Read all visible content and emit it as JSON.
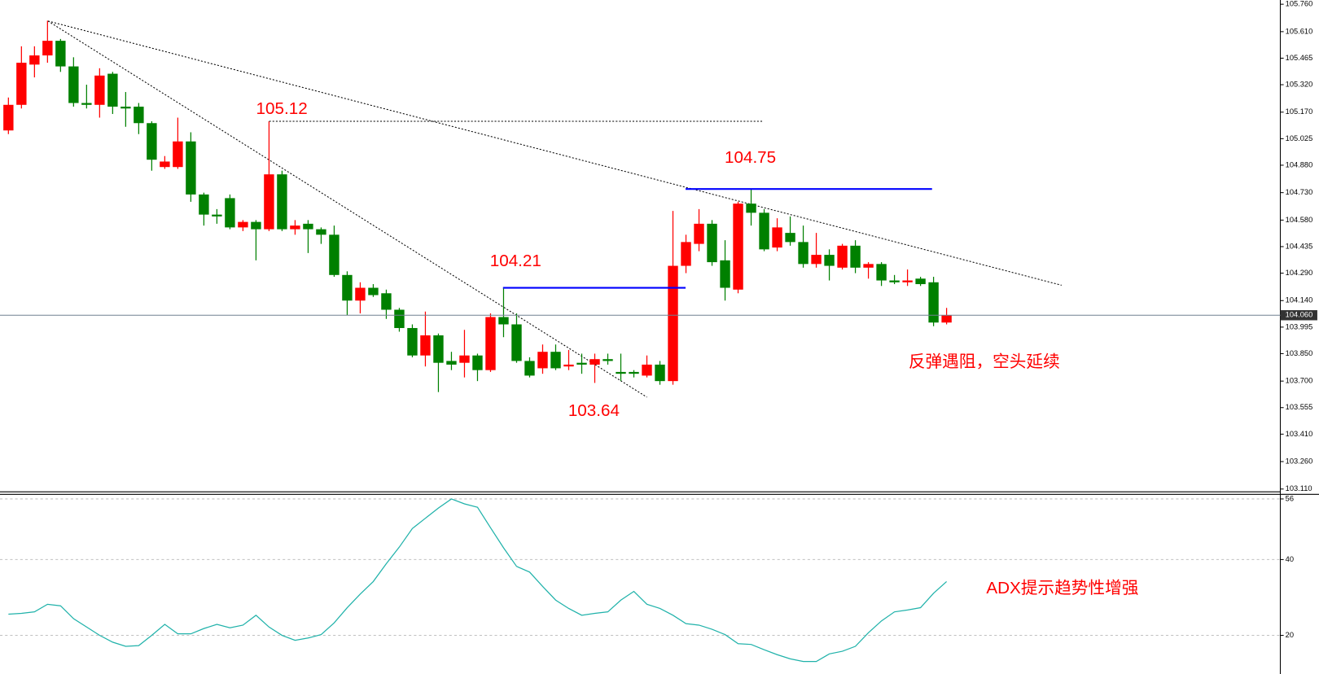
{
  "chart_data": [
    {
      "type": "candlestick",
      "open": [
        105.07,
        105.21,
        105.43,
        105.48,
        105.56,
        105.42,
        105.22,
        105.21,
        105.38,
        105.2,
        105.2,
        105.11,
        104.87,
        104.87,
        105.01,
        104.72,
        104.61,
        104.7,
        104.54,
        104.57,
        104.53,
        104.83,
        104.53,
        104.56,
        104.53,
        104.5,
        104.28,
        104.14,
        104.21,
        104.18,
        104.09,
        103.99,
        103.84,
        103.95,
        103.81,
        103.8,
        103.84,
        103.76,
        104.05,
        104.01,
        103.81,
        103.77,
        103.86,
        103.78,
        103.8,
        103.79,
        103.82,
        103.75,
        103.75,
        103.73,
        103.79,
        103.7,
        104.33,
        104.45,
        104.56,
        104.36,
        104.2,
        104.67,
        104.62,
        104.43,
        104.51,
        104.46,
        104.34,
        104.39,
        104.32,
        104.44,
        104.32,
        104.34,
        104.25,
        104.24,
        104.26,
        104.24,
        104.02
      ],
      "high": [
        105.25,
        105.53,
        105.53,
        105.67,
        105.57,
        105.47,
        105.32,
        105.41,
        105.39,
        105.28,
        105.22,
        105.12,
        104.93,
        105.14,
        105.06,
        104.73,
        104.64,
        104.72,
        104.58,
        104.58,
        105.12,
        104.85,
        104.58,
        104.58,
        104.54,
        104.55,
        104.3,
        104.24,
        104.23,
        104.2,
        104.1,
        104.01,
        104.08,
        103.96,
        103.86,
        103.98,
        103.85,
        104.07,
        104.21,
        104.07,
        103.83,
        103.9,
        103.9,
        103.87,
        103.85,
        103.85,
        103.85,
        103.85,
        103.76,
        103.84,
        103.81,
        104.63,
        104.5,
        104.64,
        104.58,
        104.47,
        104.68,
        104.75,
        104.64,
        104.59,
        104.6,
        104.55,
        104.51,
        104.42,
        104.45,
        104.47,
        104.35,
        104.35,
        104.28,
        104.31,
        104.27,
        104.27,
        104.1
      ],
      "low": [
        105.05,
        105.19,
        105.36,
        105.44,
        105.39,
        105.2,
        105.19,
        105.14,
        105.16,
        105.09,
        105.05,
        104.85,
        104.86,
        104.86,
        104.68,
        104.55,
        104.56,
        104.53,
        104.52,
        104.36,
        104.52,
        104.52,
        104.5,
        104.4,
        104.45,
        104.27,
        104.06,
        104.07,
        104.16,
        104.04,
        103.97,
        103.83,
        103.78,
        103.64,
        103.76,
        103.72,
        103.7,
        103.75,
        103.94,
        103.8,
        103.72,
        103.74,
        103.76,
        103.76,
        103.74,
        103.69,
        103.79,
        103.7,
        103.72,
        103.72,
        103.68,
        103.68,
        104.29,
        104.41,
        104.33,
        104.14,
        104.18,
        104.55,
        104.41,
        104.41,
        104.44,
        104.32,
        104.32,
        104.25,
        104.31,
        104.29,
        104.26,
        104.22,
        104.23,
        104.22,
        104.22,
        104.0,
        104.01
      ],
      "close": [
        105.21,
        105.44,
        105.48,
        105.56,
        105.42,
        105.22,
        105.21,
        105.37,
        105.2,
        105.19,
        105.11,
        104.91,
        104.9,
        105.01,
        104.72,
        104.61,
        104.6,
        104.54,
        104.57,
        104.53,
        104.83,
        104.53,
        104.55,
        104.53,
        104.5,
        104.28,
        104.14,
        104.21,
        104.17,
        104.09,
        103.99,
        103.84,
        103.95,
        103.8,
        103.79,
        103.84,
        103.76,
        104.05,
        104.01,
        103.81,
        103.73,
        103.86,
        103.77,
        103.79,
        103.79,
        103.82,
        103.81,
        103.74,
        103.74,
        103.79,
        103.7,
        104.33,
        104.46,
        104.56,
        104.35,
        104.21,
        104.67,
        104.62,
        104.42,
        104.54,
        104.46,
        104.34,
        104.39,
        104.33,
        104.44,
        104.32,
        104.34,
        104.25,
        104.24,
        104.25,
        104.23,
        104.02,
        104.06
      ],
      "up_color": "#ff0000",
      "down_color": "#008000",
      "ylim": [
        103.097,
        105.783
      ],
      "yticks": [
        {
          "value": 105.76,
          "label": "105.760"
        },
        {
          "value": 105.61,
          "label": "105.610"
        },
        {
          "value": 105.465,
          "label": "105.465"
        },
        {
          "value": 105.32,
          "label": "105.320"
        },
        {
          "value": 105.17,
          "label": "105.170"
        },
        {
          "value": 105.025,
          "label": "105.025"
        },
        {
          "value": 104.88,
          "label": "104.880"
        },
        {
          "value": 104.73,
          "label": "104.730"
        },
        {
          "value": 104.58,
          "label": "104.580"
        },
        {
          "value": 104.435,
          "label": "104.435"
        },
        {
          "value": 104.29,
          "label": "104.290"
        },
        {
          "value": 104.14,
          "label": "104.140"
        },
        {
          "value": 103.995,
          "label": "103.995"
        },
        {
          "value": 103.85,
          "label": "103.850"
        },
        {
          "value": 103.7,
          "label": "103.700"
        },
        {
          "value": 103.555,
          "label": "103.555"
        },
        {
          "value": 103.41,
          "label": "103.410"
        },
        {
          "value": 103.26,
          "label": "103.260"
        },
        {
          "value": 103.11,
          "label": "103.110"
        }
      ],
      "last_price": {
        "value": 104.06,
        "label": "104.060"
      },
      "levels": [
        {
          "value": 105.12,
          "label": "105.12"
        },
        {
          "value": 104.75,
          "label": "104.75"
        },
        {
          "value": 104.21,
          "label": "104.21"
        }
      ],
      "annotations": [
        {
          "text": "103.64"
        },
        {
          "text": "反弹遇阻，空头延续"
        }
      ]
    },
    {
      "type": "line",
      "values": [
        25.6,
        25.8,
        26.2,
        28.2,
        27.8,
        24.4,
        22.2,
        20.0,
        18.2,
        17.1,
        17.3,
        20.0,
        22.9,
        20.4,
        20.4,
        21.8,
        22.9,
        22.0,
        22.7,
        25.3,
        22.2,
        20.0,
        18.7,
        19.3,
        20.2,
        23.3,
        27.3,
        30.9,
        34.2,
        38.9,
        43.3,
        48.2,
        50.9,
        53.6,
        56.0,
        54.7,
        53.8,
        48.4,
        43.1,
        38.2,
        36.7,
        32.9,
        29.3,
        27.1,
        25.3,
        25.8,
        26.2,
        29.3,
        31.6,
        28.2,
        27.1,
        25.3,
        23.1,
        22.7,
        21.6,
        20.2,
        17.8,
        17.6,
        16.2,
        14.9,
        13.8,
        13.1,
        13.1,
        15.1,
        15.8,
        17.1,
        20.7,
        23.8,
        26.2,
        26.7,
        27.3,
        31.1,
        34.2
      ],
      "color": "#20b2aa",
      "ylim": [
        9.8,
        57.1
      ],
      "yticks": [
        56,
        40,
        20
      ],
      "annotations": [
        {
          "text": "ADX提示趋势性增强"
        }
      ]
    }
  ]
}
